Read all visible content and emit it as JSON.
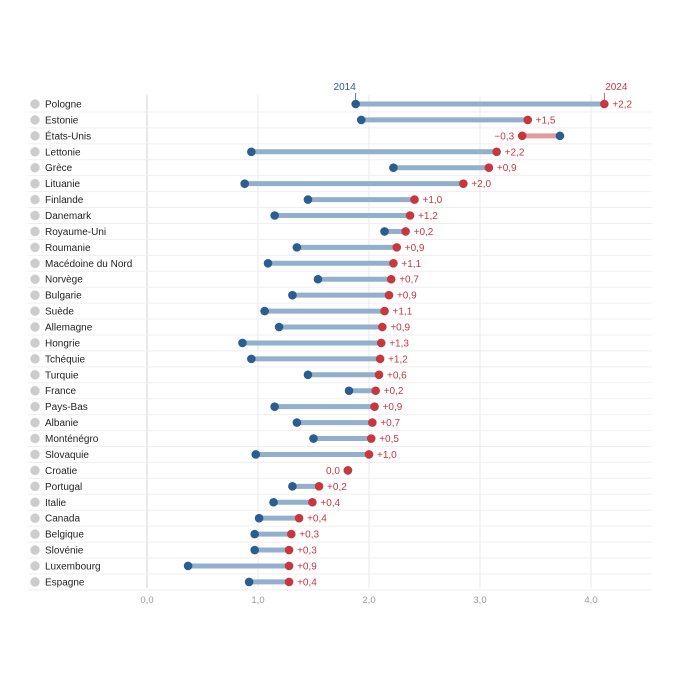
{
  "chart_data": {
    "type": "dumbbell",
    "series": [
      {
        "name": "2014",
        "color": "#2b5d8f"
      },
      {
        "name": "2024",
        "color": "#c8373f"
      }
    ],
    "colors": {
      "bar_up": "#92afcc",
      "bar_down": "#e39a9c"
    },
    "xlim": [
      0,
      4.6
    ],
    "xticks": [
      0,
      1,
      2,
      3,
      4
    ],
    "xtick_labels": [
      "0,0",
      "1,0",
      "2,0",
      "3,0",
      "4,0"
    ],
    "grid": true,
    "countries": [
      {
        "name": "Pologne",
        "v2014": 1.88,
        "v2024": 4.12,
        "delta": "+2,2",
        "flag": "poland"
      },
      {
        "name": "Estonie",
        "v2014": 1.93,
        "v2024": 3.43,
        "delta": "+1,5",
        "flag": "estonia"
      },
      {
        "name": "États-Unis",
        "v2014": 3.72,
        "v2024": 3.38,
        "delta": "−0,3",
        "flag": "usa"
      },
      {
        "name": "Lettonie",
        "v2014": 0.94,
        "v2024": 3.15,
        "delta": "+2,2",
        "flag": "latvia"
      },
      {
        "name": "Grèce",
        "v2014": 2.22,
        "v2024": 3.08,
        "delta": "+0,9",
        "flag": "greece"
      },
      {
        "name": "Lituanie",
        "v2014": 0.88,
        "v2024": 2.85,
        "delta": "+2,0",
        "flag": "lithuania"
      },
      {
        "name": "Finlande",
        "v2014": 1.45,
        "v2024": 2.41,
        "delta": "+1,0",
        "flag": "finland"
      },
      {
        "name": "Danemark",
        "v2014": 1.15,
        "v2024": 2.37,
        "delta": "+1,2",
        "flag": "denmark"
      },
      {
        "name": "Royaume-Uni",
        "v2014": 2.14,
        "v2024": 2.33,
        "delta": "+0,2",
        "flag": "uk"
      },
      {
        "name": "Roumanie",
        "v2014": 1.35,
        "v2024": 2.25,
        "delta": "+0,9",
        "flag": "romania"
      },
      {
        "name": "Macédoine du Nord",
        "v2014": 1.09,
        "v2024": 2.22,
        "delta": "+1,1",
        "flag": "northmacedonia"
      },
      {
        "name": "Norvège",
        "v2014": 1.54,
        "v2024": 2.2,
        "delta": "+0,7",
        "flag": "norway"
      },
      {
        "name": "Bulgarie",
        "v2014": 1.31,
        "v2024": 2.18,
        "delta": "+0,9",
        "flag": "bulgaria"
      },
      {
        "name": "Suède",
        "v2014": 1.06,
        "v2024": 2.14,
        "delta": "+1,1",
        "flag": "sweden"
      },
      {
        "name": "Allemagne",
        "v2014": 1.19,
        "v2024": 2.12,
        "delta": "+0,9",
        "flag": "germany"
      },
      {
        "name": "Hongrie",
        "v2014": 0.86,
        "v2024": 2.11,
        "delta": "+1,3",
        "flag": "hungary"
      },
      {
        "name": "Tchéquie",
        "v2014": 0.94,
        "v2024": 2.1,
        "delta": "+1,2",
        "flag": "czechia"
      },
      {
        "name": "Turquie",
        "v2014": 1.45,
        "v2024": 2.09,
        "delta": "+0,6",
        "flag": "turkey"
      },
      {
        "name": "France",
        "v2014": 1.82,
        "v2024": 2.06,
        "delta": "+0,2",
        "flag": "france"
      },
      {
        "name": "Pays-Bas",
        "v2014": 1.15,
        "v2024": 2.05,
        "delta": "+0,9",
        "flag": "netherlands"
      },
      {
        "name": "Albanie",
        "v2014": 1.35,
        "v2024": 2.03,
        "delta": "+0,7",
        "flag": "albania"
      },
      {
        "name": "Monténégro",
        "v2014": 1.5,
        "v2024": 2.02,
        "delta": "+0,5",
        "flag": "montenegro"
      },
      {
        "name": "Slovaquie",
        "v2014": 0.98,
        "v2024": 2.0,
        "delta": "+1,0",
        "flag": "slovakia"
      },
      {
        "name": "Croatie",
        "v2014": 1.81,
        "v2024": 1.81,
        "delta": "0,0",
        "flag": "croatia"
      },
      {
        "name": "Portugal",
        "v2014": 1.31,
        "v2024": 1.55,
        "delta": "+0,2",
        "flag": "portugal"
      },
      {
        "name": "Italie",
        "v2014": 1.14,
        "v2024": 1.49,
        "delta": "+0,4",
        "flag": "italy"
      },
      {
        "name": "Canada",
        "v2014": 1.01,
        "v2024": 1.37,
        "delta": "+0,4",
        "flag": "canada"
      },
      {
        "name": "Belgique",
        "v2014": 0.97,
        "v2024": 1.3,
        "delta": "+0,3",
        "flag": "belgium"
      },
      {
        "name": "Slovénie",
        "v2014": 0.97,
        "v2024": 1.28,
        "delta": "+0,3",
        "flag": "slovenia"
      },
      {
        "name": "Luxembourg",
        "v2014": 0.37,
        "v2024": 1.28,
        "delta": "+0,9",
        "flag": "luxembourg"
      },
      {
        "name": "Espagne",
        "v2014": 0.92,
        "v2024": 1.28,
        "delta": "+0,4",
        "flag": "spain"
      }
    ]
  }
}
